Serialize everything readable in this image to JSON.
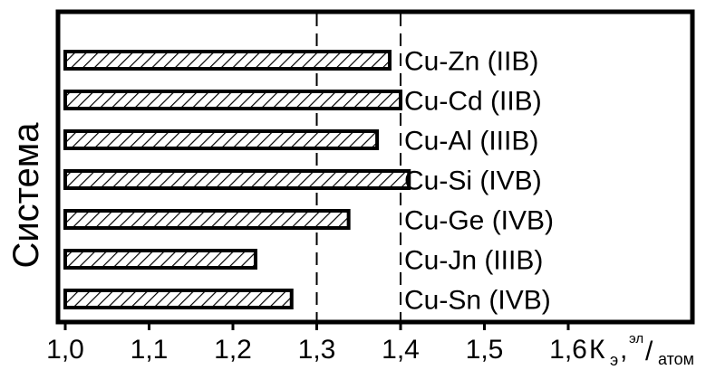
{
  "chart_data": {
    "type": "bar",
    "orientation": "horizontal",
    "ylabel": "Система",
    "xlabel": {
      "main": "К",
      "sub": "э",
      "sep": ",",
      "sup": "эл",
      "slash": "/",
      "tail": "атом"
    },
    "categories": [
      "Cu-Zn (IIB)",
      "Cu-Cd (IIB)",
      "Cu-Al (IIIB)",
      "Cu-Si (IVB)",
      "Cu-Ge (IVB)",
      "Cu-Jn (IIIB)",
      "Cu-Sn (IVB)"
    ],
    "values": [
      1.387,
      1.4,
      1.372,
      1.41,
      1.338,
      1.227,
      1.27
    ],
    "xlim": [
      1.0,
      1.65
    ],
    "xticks": [
      "1,0",
      "1,1",
      "1,2",
      "1,3",
      "1,4",
      "1,5",
      "1,6"
    ],
    "reference_lines": [
      1.3,
      1.4
    ],
    "bar_fill": "diagonal hatch",
    "colors": {
      "ink": "#000000",
      "background": "#ffffff"
    }
  }
}
